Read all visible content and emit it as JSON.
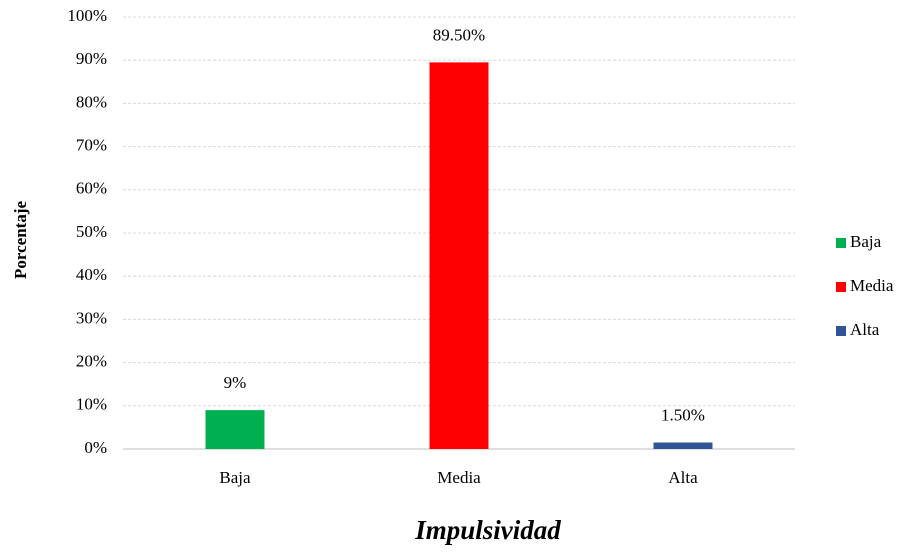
{
  "chart_data": {
    "type": "bar",
    "y_label": "Porcentaje",
    "x_label": "Impulsividad",
    "categories": [
      "Baja",
      "Media",
      "Alta"
    ],
    "series": [
      {
        "name": "Baja",
        "color": "#00b050",
        "values": [
          9,
          null,
          null
        ],
        "value_labels": [
          "9%",
          null,
          null
        ]
      },
      {
        "name": "Media",
        "color": "#ff0000",
        "values": [
          null,
          89.5,
          null
        ],
        "value_labels": [
          null,
          "89.50%",
          null
        ]
      },
      {
        "name": "Alta",
        "color": "#2f5597",
        "values": [
          null,
          null,
          1.5
        ],
        "value_labels": [
          null,
          null,
          "1.50%"
        ]
      }
    ],
    "ylim": [
      0,
      100
    ],
    "yticks": [
      {
        "value": 0,
        "label": "0%"
      },
      {
        "value": 10,
        "label": "10%"
      },
      {
        "value": 20,
        "label": "20%"
      },
      {
        "value": 30,
        "label": "30%"
      },
      {
        "value": 40,
        "label": "40%"
      },
      {
        "value": 50,
        "label": "50%"
      },
      {
        "value": 60,
        "label": "60%"
      },
      {
        "value": 70,
        "label": "70%"
      },
      {
        "value": 80,
        "label": "80%"
      },
      {
        "value": 90,
        "label": "90%"
      },
      {
        "value": 100,
        "label": "100%"
      }
    ],
    "grid": true,
    "legend": "right"
  }
}
